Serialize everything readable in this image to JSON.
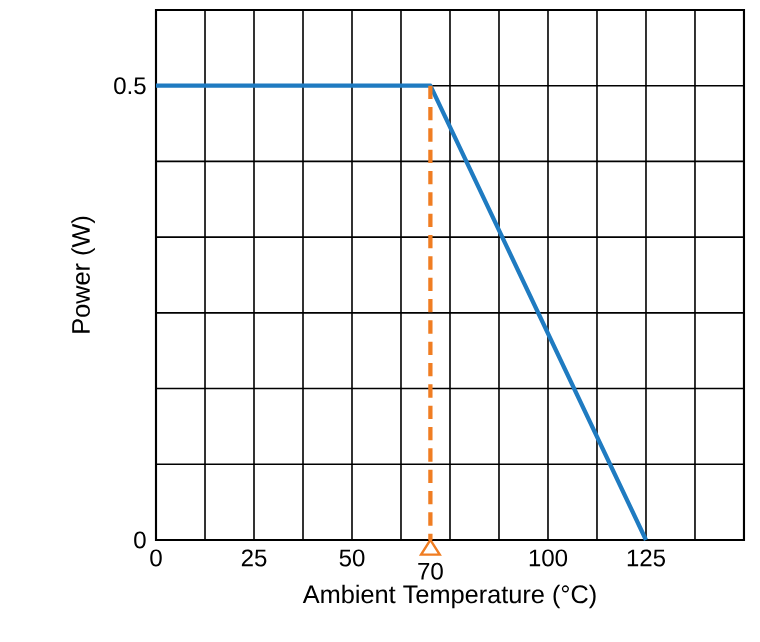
{
  "chart_data": {
    "type": "line",
    "xlabel": "Ambient Temperature (°C)",
    "ylabel": "Power (W)",
    "series": [
      {
        "color": "#1f7bc1",
        "x": [
          0,
          70,
          125
        ],
        "values": [
          0.5,
          0.5,
          0
        ]
      }
    ],
    "xlim": [
      0,
      150
    ],
    "ylim": [
      0,
      0.5833
    ],
    "xticks": [
      0,
      {
        "value": 12.5,
        "label": null
      },
      25,
      {
        "value": 37.5,
        "label": null
      },
      50,
      {
        "value": 62.5,
        "label": null
      },
      {
        "value": 75,
        "label": null
      },
      {
        "value": 87.5,
        "label": null
      },
      100,
      {
        "value": 112.5,
        "label": null
      },
      125,
      {
        "value": 137.5,
        "label": null
      }
    ],
    "yticks": [
      0,
      {
        "value": 0.0833,
        "label": null
      },
      {
        "value": 0.1667,
        "label": null
      },
      {
        "value": 0.25,
        "label": null
      },
      {
        "value": 0.3333,
        "label": null
      },
      {
        "value": 0.4167,
        "label": null
      },
      0.5
    ],
    "grid": true,
    "marker": "none",
    "line_style": "solid",
    "ref_lines": [
      {
        "axis": "x",
        "value": 70,
        "label": "70",
        "color": "#f07d22",
        "line_style": "dashed"
      }
    ]
  }
}
